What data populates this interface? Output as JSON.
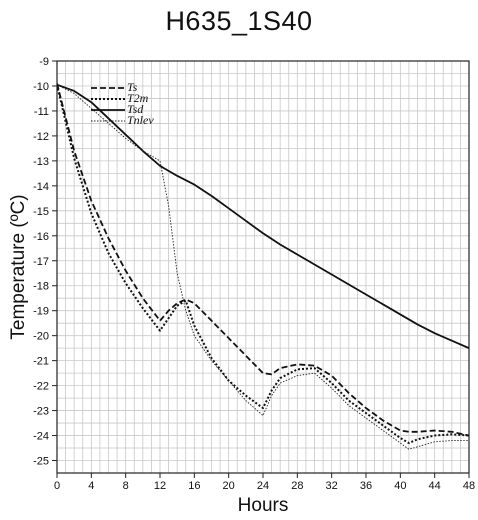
{
  "chart_data": {
    "type": "line",
    "title": "H635_1S40",
    "xlabel": "Hours",
    "ylabel": "Temperature (ºC)",
    "xlim": [
      0,
      48
    ],
    "ylim": [
      -25.5,
      -9
    ],
    "xticks": [
      "0",
      "4",
      "8",
      "12",
      "16",
      "20",
      "24",
      "28",
      "32",
      "36",
      "40",
      "44",
      "48"
    ],
    "yticks": [
      "-9",
      "-10",
      "-11",
      "-12",
      "-13",
      "-14",
      "-15",
      "-16",
      "-17",
      "-18",
      "-19",
      "-20",
      "-21",
      "-22",
      "-23",
      "-24",
      "-25"
    ],
    "grid": true,
    "legend_position": "top-left",
    "series": [
      {
        "name": "Ts",
        "style": "dashed",
        "color": "#111111",
        "x": [
          0,
          2,
          4,
          6,
          8,
          10,
          12,
          13,
          14,
          15,
          16,
          18,
          20,
          22,
          24,
          25,
          26,
          28,
          30,
          32,
          34,
          36,
          38,
          40,
          41,
          42,
          44,
          46,
          48
        ],
        "y": [
          -9.9,
          -12.6,
          -14.6,
          -16.1,
          -17.4,
          -18.5,
          -19.4,
          -19.0,
          -18.7,
          -18.55,
          -18.7,
          -19.4,
          -20.1,
          -20.8,
          -21.5,
          -21.55,
          -21.3,
          -21.15,
          -21.2,
          -21.6,
          -22.3,
          -22.9,
          -23.4,
          -23.8,
          -23.85,
          -23.85,
          -23.8,
          -23.85,
          -24.0
        ]
      },
      {
        "name": "T2m",
        "style": "dotted-heavy",
        "color": "#111111",
        "x": [
          0,
          2,
          4,
          6,
          8,
          10,
          12,
          13,
          14,
          15,
          16,
          18,
          20,
          22,
          24,
          25,
          26,
          28,
          30,
          32,
          34,
          36,
          38,
          40,
          41,
          42,
          44,
          46,
          48
        ],
        "y": [
          -9.95,
          -12.9,
          -15.1,
          -16.7,
          -17.9,
          -18.9,
          -19.8,
          -19.3,
          -18.8,
          -18.6,
          -19.6,
          -20.9,
          -21.8,
          -22.4,
          -22.9,
          -22.2,
          -21.7,
          -21.35,
          -21.3,
          -21.9,
          -22.6,
          -23.1,
          -23.6,
          -24.1,
          -24.3,
          -24.15,
          -24.0,
          -23.95,
          -24.0
        ]
      },
      {
        "name": "Tsd",
        "style": "solid",
        "color": "#111111",
        "x": [
          0,
          2,
          4,
          6,
          8,
          10,
          12,
          14,
          16,
          18,
          20,
          22,
          24,
          26,
          28,
          30,
          32,
          34,
          36,
          38,
          40,
          42,
          44,
          46,
          48
        ],
        "y": [
          -9.95,
          -10.2,
          -10.65,
          -11.3,
          -11.95,
          -12.6,
          -13.2,
          -13.6,
          -13.95,
          -14.4,
          -14.9,
          -15.4,
          -15.9,
          -16.35,
          -16.75,
          -17.15,
          -17.55,
          -17.95,
          -18.35,
          -18.75,
          -19.15,
          -19.55,
          -19.9,
          -20.2,
          -20.5
        ]
      },
      {
        "name": "Tnlev",
        "style": "dotted-fine",
        "color": "#222222",
        "x": [
          0,
          2,
          4,
          6,
          8,
          10,
          12,
          13,
          14,
          15,
          16,
          18,
          20,
          22,
          24,
          25,
          26,
          28,
          30,
          32,
          34,
          36,
          38,
          40,
          41,
          42,
          44,
          46,
          48
        ],
        "y": [
          -9.95,
          -10.3,
          -10.9,
          -11.5,
          -12.1,
          -12.6,
          -13.0,
          -14.8,
          -17.5,
          -19.0,
          -20.0,
          -21.0,
          -21.8,
          -22.6,
          -23.2,
          -22.4,
          -21.9,
          -21.6,
          -21.5,
          -22.1,
          -22.8,
          -23.3,
          -23.8,
          -24.3,
          -24.55,
          -24.45,
          -24.25,
          -24.2,
          -24.2
        ]
      }
    ]
  }
}
